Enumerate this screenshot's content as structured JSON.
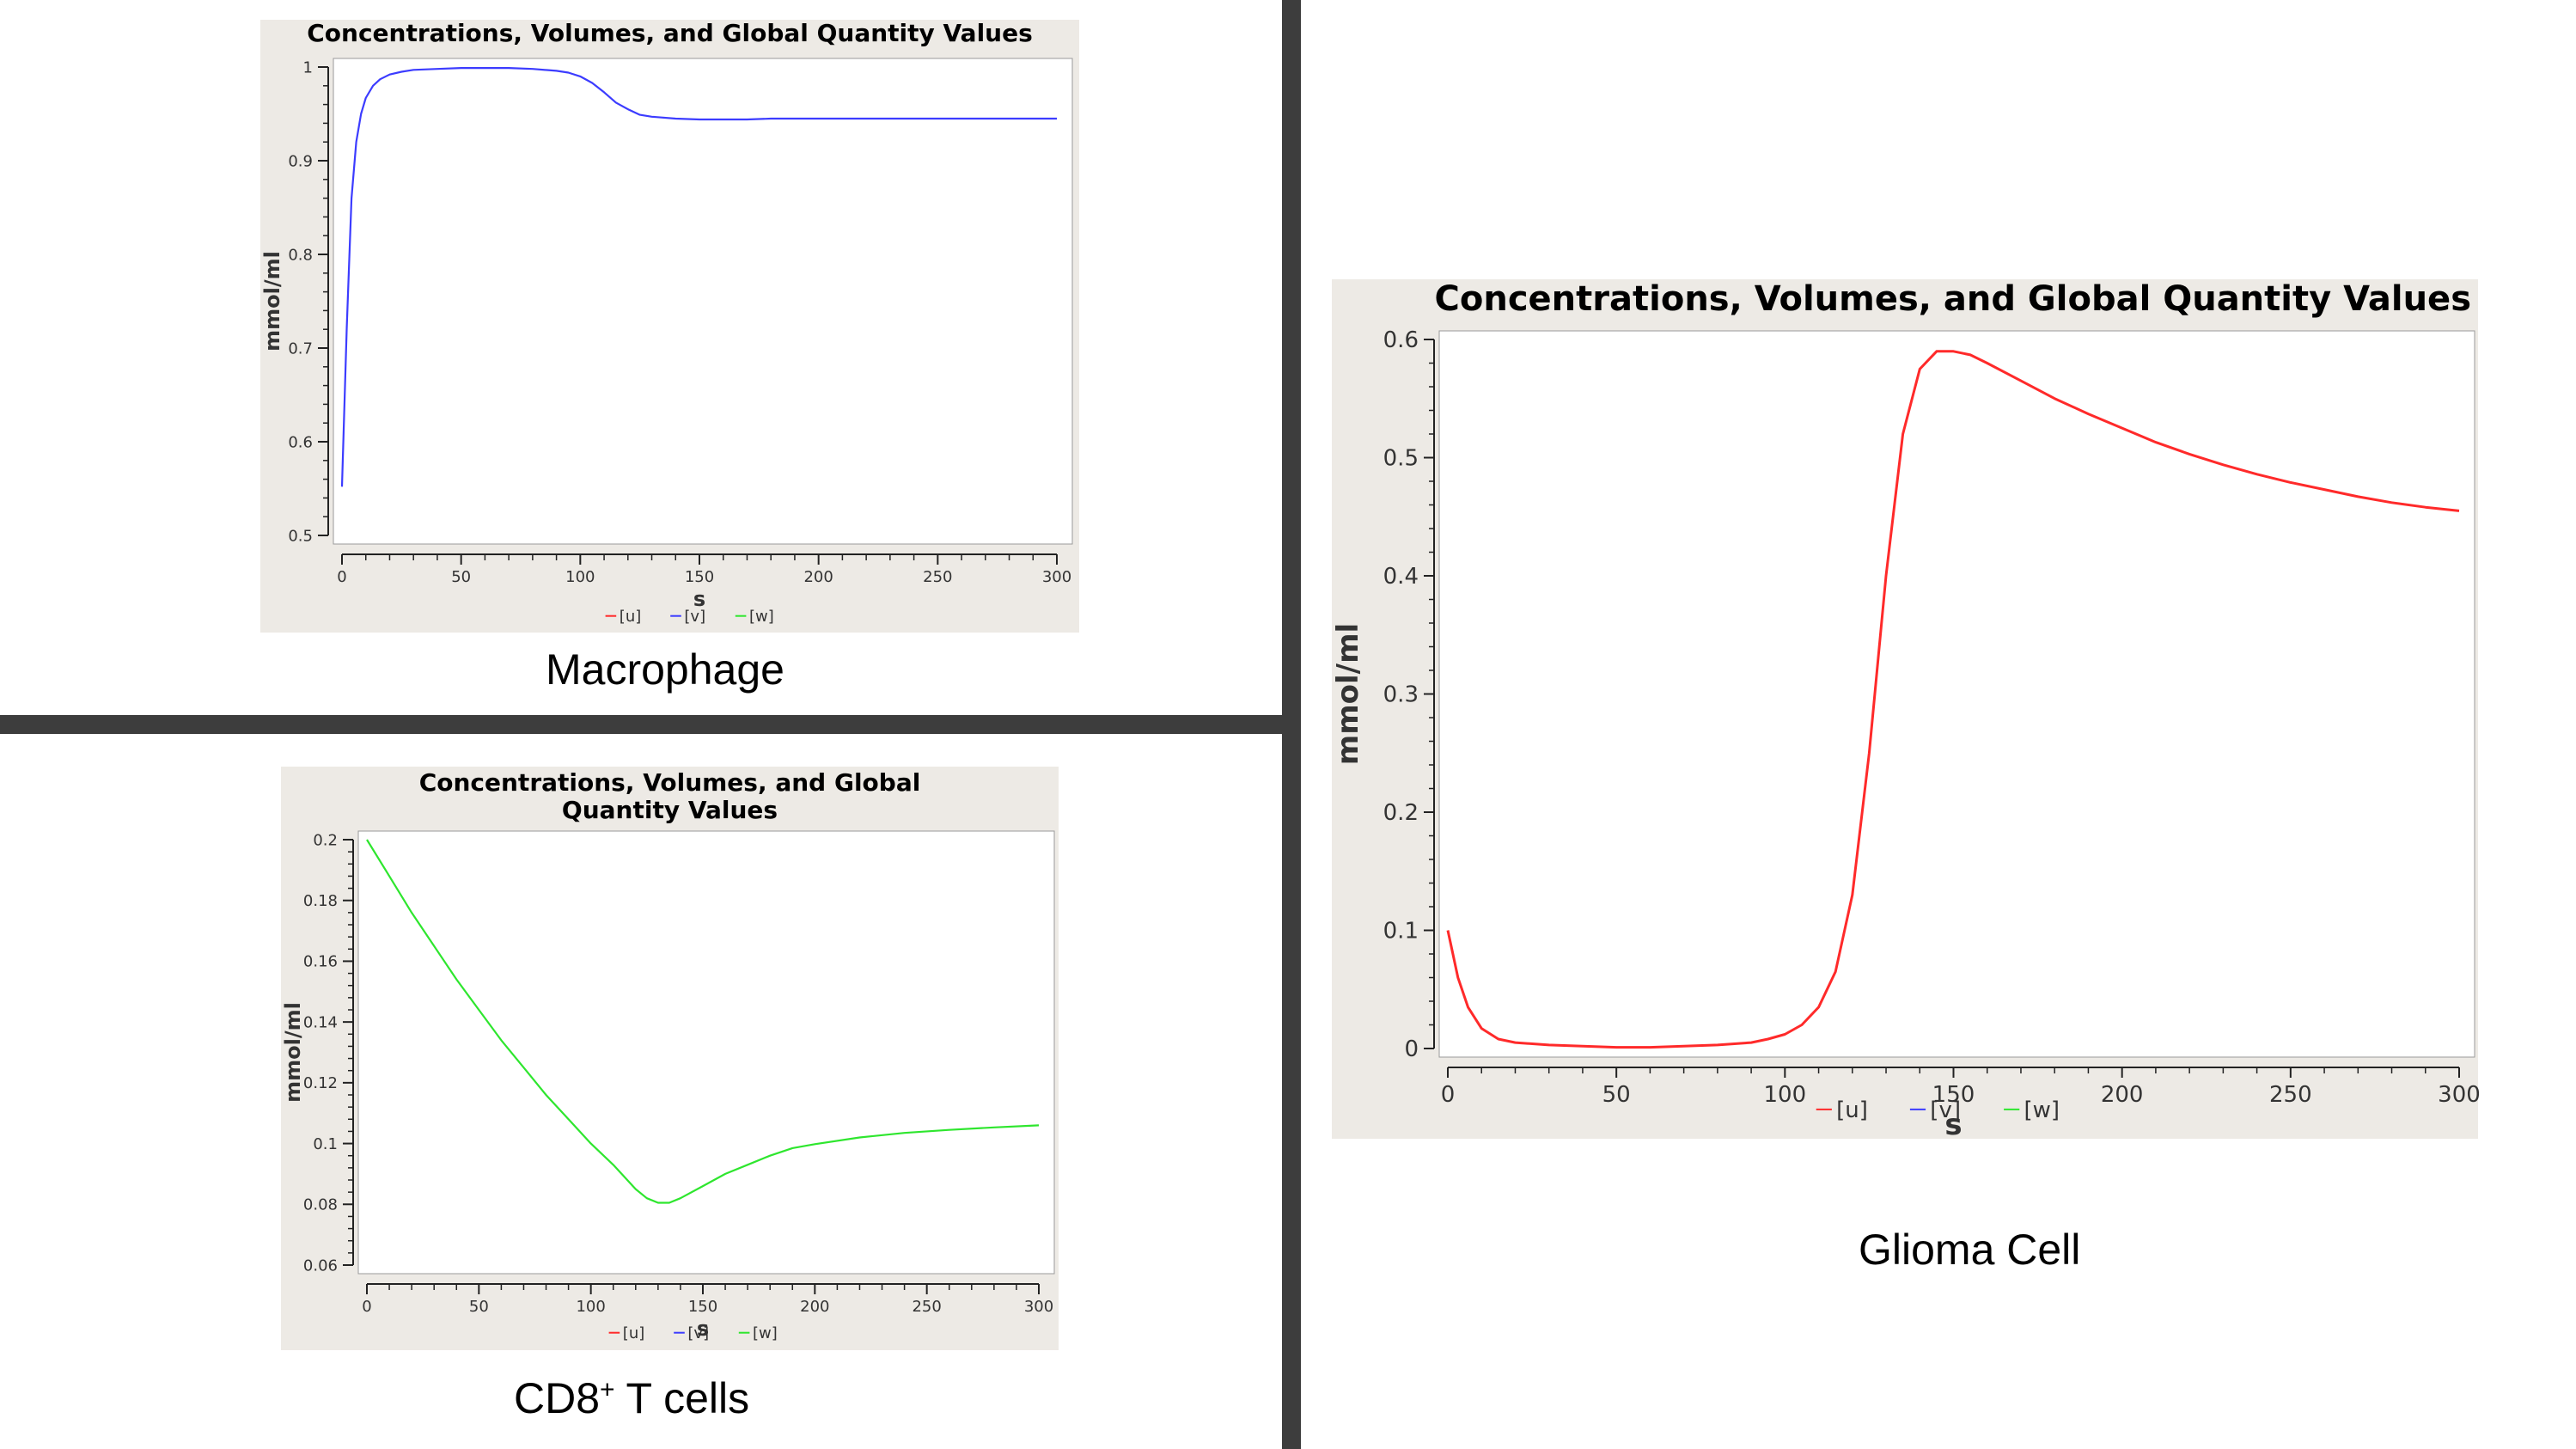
{
  "captions": {
    "macrophage": "Macrophage",
    "cd8_main": "CD8",
    "cd8_sup": "+",
    "cd8_rest": " T cells",
    "glioma": "Glioma Cell"
  },
  "colors": {
    "u": "#ff2a2a",
    "v": "#3c3cff",
    "w": "#2ee62e",
    "divider": "#3d3d3d",
    "panel": "#edeae5"
  },
  "chart_data": [
    {
      "id": "macrophage",
      "type": "line",
      "title": "Concentrations, Volumes, and Global Quantity Values",
      "xlabel": "s",
      "ylabel": "mmol/ml",
      "xlim": [
        0,
        300
      ],
      "ylim": [
        0.5,
        1
      ],
      "xticks": [
        0,
        50,
        100,
        150,
        200,
        250,
        300
      ],
      "yticks": [
        0.5,
        0.6,
        0.7,
        0.8,
        0.9,
        1
      ],
      "ytick_labels": [
        "0.5",
        "0.6",
        "0.7",
        "0.8",
        "0.9",
        "1"
      ],
      "legend": [
        "[u]",
        "[v]",
        "[w]"
      ],
      "legend_position": "bottom",
      "series": [
        {
          "name": "[v]",
          "color": "v",
          "x": [
            0,
            2,
            4,
            6,
            8,
            10,
            13,
            16,
            20,
            25,
            30,
            40,
            50,
            60,
            70,
            80,
            90,
            95,
            100,
            105,
            110,
            115,
            120,
            125,
            130,
            140,
            150,
            160,
            170,
            180,
            200,
            250,
            300
          ],
          "y": [
            0.552,
            0.72,
            0.86,
            0.92,
            0.95,
            0.967,
            0.98,
            0.987,
            0.992,
            0.995,
            0.997,
            0.998,
            0.999,
            0.999,
            0.999,
            0.998,
            0.996,
            0.994,
            0.99,
            0.983,
            0.973,
            0.962,
            0.955,
            0.949,
            0.947,
            0.945,
            0.944,
            0.944,
            0.944,
            0.945,
            0.945,
            0.945,
            0.945
          ]
        }
      ]
    },
    {
      "id": "cd8",
      "type": "line",
      "title": "Concentrations, Volumes, and Global Quantity Values",
      "xlabel": "s",
      "ylabel": "mmol/ml",
      "xlim": [
        0,
        300
      ],
      "ylim": [
        0.06,
        0.2
      ],
      "xticks": [
        0,
        50,
        100,
        150,
        200,
        250,
        300
      ],
      "yticks": [
        0.06,
        0.08,
        0.1,
        0.12,
        0.14,
        0.16,
        0.18,
        0.2
      ],
      "ytick_labels": [
        "0.06",
        "0.08",
        "0.1",
        "0.12",
        "0.14",
        "0.16",
        "0.18",
        "0.2"
      ],
      "legend": [
        "[u]",
        "[v]",
        "[w]"
      ],
      "legend_position": "bottom",
      "series": [
        {
          "name": "[w]",
          "color": "w",
          "x": [
            0,
            10,
            20,
            30,
            40,
            50,
            60,
            70,
            80,
            90,
            100,
            110,
            120,
            125,
            130,
            135,
            140,
            150,
            160,
            170,
            180,
            190,
            200,
            220,
            240,
            260,
            280,
            300
          ],
          "y": [
            0.2,
            0.188,
            0.176,
            0.165,
            0.154,
            0.144,
            0.134,
            0.125,
            0.116,
            0.108,
            0.1,
            0.093,
            0.085,
            0.082,
            0.0805,
            0.0805,
            0.082,
            0.086,
            0.09,
            0.093,
            0.096,
            0.0985,
            0.0998,
            0.102,
            0.1035,
            0.1045,
            0.1053,
            0.106
          ]
        }
      ]
    },
    {
      "id": "glioma",
      "type": "line",
      "title": "Concentrations, Volumes, and Global Quantity Values",
      "xlabel": "s",
      "ylabel": "mmol/ml",
      "xlim": [
        0,
        300
      ],
      "ylim": [
        0,
        0.6
      ],
      "xticks": [
        0,
        50,
        100,
        150,
        200,
        250,
        300
      ],
      "yticks": [
        0,
        0.1,
        0.2,
        0.3,
        0.4,
        0.5,
        0.6
      ],
      "ytick_labels": [
        "0",
        "0.1",
        "0.2",
        "0.3",
        "0.4",
        "0.5",
        "0.6"
      ],
      "legend": [
        "[u]",
        "[v]",
        "[w]"
      ],
      "legend_position": "bottom",
      "series": [
        {
          "name": "[u]",
          "color": "u",
          "x": [
            0,
            3,
            6,
            10,
            15,
            20,
            30,
            40,
            50,
            60,
            70,
            80,
            90,
            95,
            100,
            105,
            110,
            115,
            120,
            125,
            130,
            135,
            140,
            145,
            150,
            155,
            160,
            170,
            180,
            190,
            200,
            210,
            220,
            230,
            240,
            250,
            260,
            270,
            280,
            290,
            300
          ],
          "y": [
            0.1,
            0.06,
            0.035,
            0.017,
            0.008,
            0.005,
            0.003,
            0.002,
            0.001,
            0.001,
            0.002,
            0.003,
            0.005,
            0.008,
            0.012,
            0.02,
            0.035,
            0.065,
            0.13,
            0.25,
            0.4,
            0.52,
            0.575,
            0.59,
            0.59,
            0.587,
            0.58,
            0.565,
            0.55,
            0.537,
            0.525,
            0.513,
            0.503,
            0.494,
            0.486,
            0.479,
            0.473,
            0.467,
            0.462,
            0.458,
            0.455
          ]
        }
      ]
    }
  ]
}
